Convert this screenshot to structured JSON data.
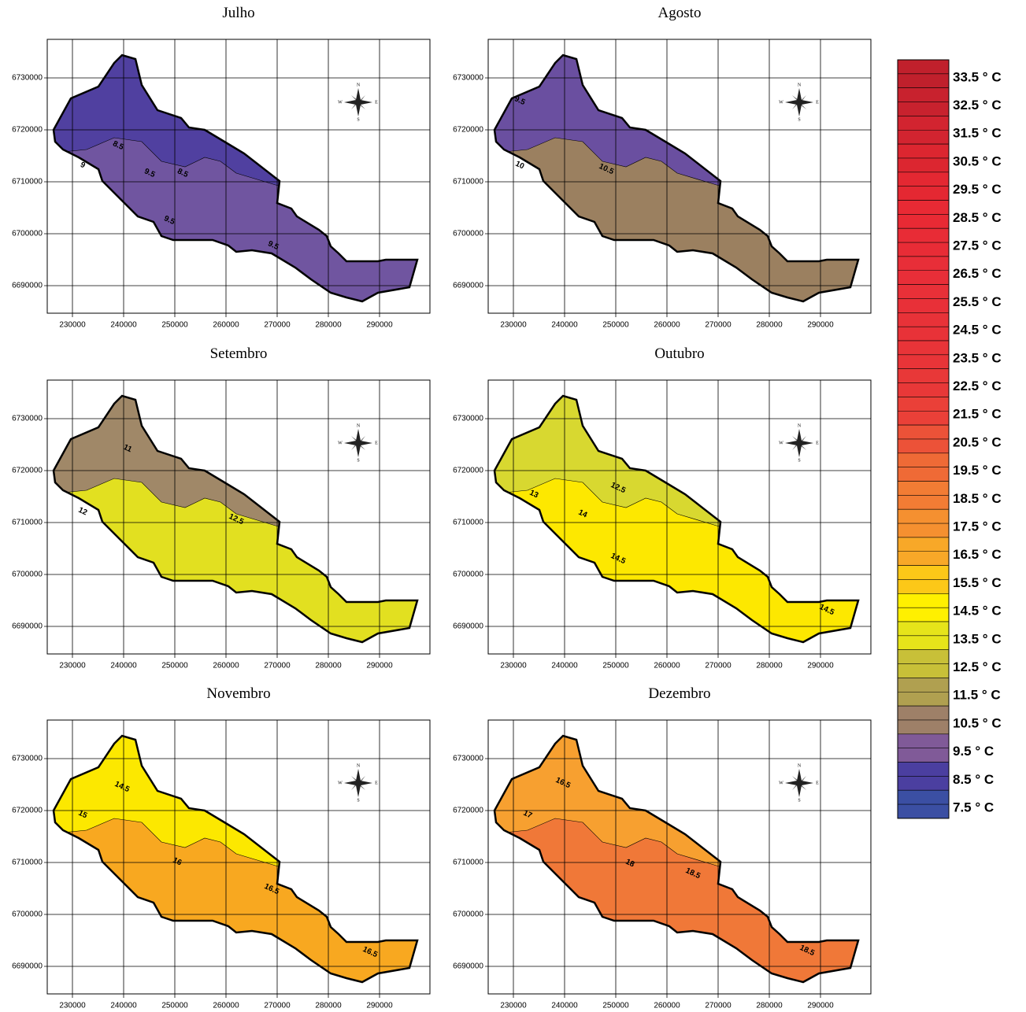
{
  "compass": {
    "n": "N",
    "s": "S",
    "e": "E",
    "w": "W"
  },
  "panels": [
    {
      "title": "Julho",
      "xticks": [
        230000,
        240000,
        250000,
        260000,
        270000,
        280000,
        290000
      ],
      "yticks": [
        6730000,
        6720000,
        6710000,
        6700000,
        6690000
      ],
      "contour_labels": [
        "8.5",
        "9",
        "9.5",
        "8.5",
        "9.5",
        "9.5"
      ]
    },
    {
      "title": "Agosto",
      "xticks": [
        230000,
        240000,
        250000,
        260000,
        270000,
        280000,
        290000
      ],
      "yticks": [
        6730000,
        6720000,
        6710000,
        6700000,
        6690000
      ],
      "contour_labels": [
        "9.5",
        "10",
        "10.5"
      ]
    },
    {
      "title": "Setembro",
      "xticks": [
        230000,
        240000,
        250000,
        260000,
        270000,
        280000,
        290000
      ],
      "yticks": [
        6730000,
        6720000,
        6710000,
        6700000,
        6690000
      ],
      "contour_labels": [
        "11",
        "12",
        "12.5"
      ]
    },
    {
      "title": "Outubro",
      "xticks": [
        230000,
        240000,
        250000,
        260000,
        270000,
        280000,
        290000
      ],
      "yticks": [
        6730000,
        6720000,
        6710000,
        6700000,
        6690000
      ],
      "contour_labels": [
        "13",
        "12.5",
        "14",
        "14.5",
        "14.5"
      ]
    },
    {
      "title": "Novembro",
      "xticks": [
        230000,
        240000,
        250000,
        260000,
        270000,
        280000,
        290000
      ],
      "yticks": [
        6730000,
        6720000,
        6710000,
        6700000,
        6690000
      ],
      "contour_labels": [
        "14.5",
        "15",
        "16",
        "16.5",
        "16.5"
      ]
    },
    {
      "title": "Dezembro",
      "xticks": [
        230000,
        240000,
        250000,
        260000,
        270000,
        280000,
        290000
      ],
      "yticks": [
        6730000,
        6720000,
        6710000,
        6700000,
        6690000
      ],
      "contour_labels": [
        "16.5",
        "17",
        "18",
        "18.5",
        "18.5"
      ]
    }
  ],
  "legend": {
    "labels": [
      "33.5 ° C",
      "32.5 ° C",
      "31.5 ° C",
      "30.5 ° C",
      "29.5 ° C",
      "28.5 ° C",
      "27.5 ° C",
      "26.5 ° C",
      "25.5 ° C",
      "24.5 ° C",
      "23.5 ° C",
      "22.5 ° C",
      "21.5 ° C",
      "20.5 ° C",
      "19.5 ° C",
      "18.5 ° C",
      "17.5 ° C",
      "16.5 ° C",
      "15.5 ° C",
      "14.5 ° C",
      "13.5 ° C",
      "12.5 ° C",
      "11.5 ° C",
      "10.5 ° C",
      "9.5 ° C",
      "8.5 ° C",
      "7.5 ° C"
    ]
  }
}
